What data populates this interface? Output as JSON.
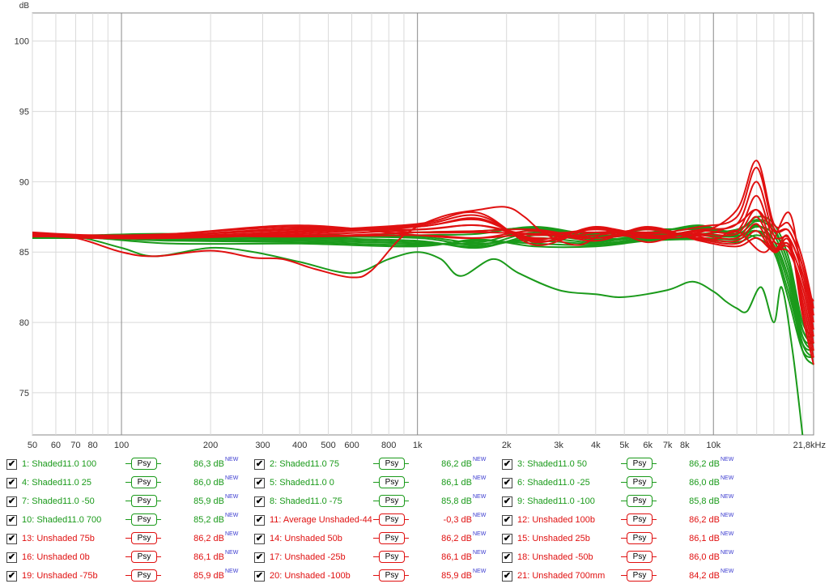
{
  "chart_data": {
    "type": "line",
    "title": "",
    "xlabel": "",
    "ylabel": "dB",
    "xscale": "log",
    "xlim": [
      50,
      21800
    ],
    "ylim": [
      72,
      102
    ],
    "grid": true,
    "x_ticks": [
      {
        "v": 50,
        "t": "50"
      },
      {
        "v": 60,
        "t": "60"
      },
      {
        "v": 70,
        "t": "70"
      },
      {
        "v": 80,
        "t": "80"
      },
      {
        "v": 100,
        "t": "100"
      },
      {
        "v": 200,
        "t": "200"
      },
      {
        "v": 300,
        "t": "300"
      },
      {
        "v": 400,
        "t": "400"
      },
      {
        "v": 500,
        "t": "500"
      },
      {
        "v": 600,
        "t": "600"
      },
      {
        "v": 800,
        "t": "800"
      },
      {
        "v": 1000,
        "t": "1k"
      },
      {
        "v": 2000,
        "t": "2k"
      },
      {
        "v": 3000,
        "t": "3k"
      },
      {
        "v": 4000,
        "t": "4k"
      },
      {
        "v": 5000,
        "t": "5k"
      },
      {
        "v": 6000,
        "t": "6k"
      },
      {
        "v": 7000,
        "t": "7k"
      },
      {
        "v": 8000,
        "t": "8k"
      },
      {
        "v": 10000,
        "t": "10k"
      },
      {
        "v": 21800,
        "t": "21,8kHz"
      }
    ],
    "minor_grid_x": [
      90,
      700,
      900,
      9000,
      12000,
      14000,
      16000,
      18000,
      20000
    ],
    "major_grid_x": [
      100,
      1000,
      10000
    ],
    "y_ticks": [
      75,
      80,
      85,
      90,
      95,
      100
    ],
    "colors": {
      "green": "#1a9a1a",
      "red": "#e01010"
    },
    "series": [
      {
        "name": "1: Shaded11.0 100",
        "color": "green",
        "x": [
          50,
          80,
          150,
          400,
          1000,
          1600,
          2500,
          4000,
          6000,
          9000,
          12000,
          14000,
          16000,
          18000,
          20000,
          21800
        ],
        "y": [
          86.1,
          86.2,
          86.3,
          86.0,
          86.4,
          86.5,
          86.7,
          86.3,
          86.6,
          86.6,
          86.4,
          86.0,
          85.0,
          81.5,
          78.0,
          77.5
        ]
      },
      {
        "name": "2: Shaded11.0 75",
        "color": "green",
        "x": [
          50,
          80,
          150,
          400,
          1000,
          1600,
          2500,
          4000,
          6000,
          9000,
          12000,
          14000,
          16000,
          18000,
          20000,
          21800
        ],
        "y": [
          86.0,
          86.1,
          86.2,
          86.0,
          86.2,
          86.3,
          86.8,
          86.2,
          86.4,
          86.8,
          86.2,
          86.5,
          85.3,
          82.0,
          78.5,
          78.0
        ]
      },
      {
        "name": "3: Shaded11.0 50",
        "color": "green",
        "x": [
          50,
          80,
          150,
          400,
          1000,
          1600,
          2500,
          4000,
          6000,
          9000,
          12000,
          14000,
          16000,
          18000,
          20000,
          21800
        ],
        "y": [
          86.1,
          86.1,
          86.1,
          86.2,
          86.1,
          85.7,
          86.6,
          86.1,
          86.3,
          86.9,
          86.1,
          86.9,
          85.8,
          83.0,
          79.0,
          78.5
        ]
      },
      {
        "name": "4: Shaded11.0 25",
        "color": "green",
        "x": [
          50,
          80,
          150,
          400,
          1000,
          1600,
          2500,
          4000,
          6000,
          9000,
          12000,
          14000,
          16000,
          18000,
          20000,
          21800
        ],
        "y": [
          86.0,
          86.1,
          86.2,
          86.1,
          86.0,
          85.5,
          86.4,
          85.9,
          86.2,
          86.7,
          86.3,
          87.2,
          86.5,
          84.0,
          79.5,
          79.0
        ]
      },
      {
        "name": "5: Shaded11.0 0",
        "color": "green",
        "x": [
          50,
          80,
          150,
          400,
          1000,
          1600,
          2500,
          4000,
          6000,
          9000,
          12000,
          14000,
          16000,
          18000,
          20000,
          21800
        ],
        "y": [
          86.0,
          86.0,
          86.1,
          86.0,
          85.8,
          85.3,
          86.2,
          85.8,
          86.1,
          86.5,
          86.5,
          87.5,
          87.0,
          84.5,
          80.0,
          79.0
        ]
      },
      {
        "name": "6: Shaded11.0 -25",
        "color": "green",
        "x": [
          50,
          80,
          150,
          400,
          1000,
          1600,
          2500,
          4000,
          6000,
          9000,
          12000,
          14000,
          16000,
          18000,
          20000,
          21800
        ],
        "y": [
          86.0,
          86.1,
          86.0,
          85.9,
          85.7,
          85.4,
          86.0,
          85.7,
          86.2,
          86.3,
          86.6,
          87.3,
          86.7,
          84.0,
          79.5,
          78.5
        ]
      },
      {
        "name": "7: Shaded11.0 -50",
        "color": "green",
        "x": [
          50,
          80,
          150,
          400,
          1000,
          1600,
          2500,
          4000,
          6000,
          9000,
          12000,
          14000,
          16000,
          18000,
          20000,
          21800
        ],
        "y": [
          86.0,
          86.1,
          85.9,
          85.8,
          85.6,
          85.6,
          85.8,
          85.6,
          86.0,
          86.2,
          86.1,
          86.8,
          86.2,
          83.5,
          79.0,
          78.0
        ]
      },
      {
        "name": "8: Shaded11.0 -75",
        "color": "green",
        "x": [
          50,
          80,
          150,
          400,
          1000,
          1600,
          2500,
          4000,
          6000,
          9000,
          12000,
          14000,
          16000,
          18000,
          20000,
          21800
        ],
        "y": [
          86.0,
          86.0,
          85.8,
          85.7,
          85.5,
          85.8,
          85.6,
          85.5,
          85.9,
          86.0,
          85.9,
          86.5,
          85.8,
          83.0,
          78.5,
          77.5
        ]
      },
      {
        "name": "9: Shaded11.0 -100",
        "color": "green",
        "x": [
          50,
          80,
          150,
          400,
          1000,
          1600,
          2500,
          4000,
          6000,
          9000,
          12000,
          14000,
          16000,
          18000,
          20000,
          21800
        ],
        "y": [
          86.0,
          86.0,
          85.6,
          85.6,
          85.4,
          85.9,
          85.4,
          85.4,
          85.8,
          85.9,
          85.7,
          86.2,
          85.5,
          82.5,
          78.0,
          77.0
        ]
      },
      {
        "name": "10: Shaded11.0 700",
        "color": "green",
        "x": [
          50,
          70,
          100,
          130,
          200,
          280,
          400,
          600,
          800,
          1000,
          1200,
          1400,
          1800,
          2200,
          3000,
          4000,
          5000,
          7000,
          8500,
          10000,
          11000,
          12000,
          13000,
          14500,
          16000,
          17000,
          18500,
          20000
        ],
        "y": [
          86.0,
          86.1,
          85.3,
          84.7,
          85.3,
          85.0,
          84.3,
          83.5,
          84.5,
          85.0,
          84.5,
          83.3,
          84.5,
          83.5,
          82.3,
          82.0,
          81.8,
          82.3,
          82.9,
          82.2,
          81.5,
          81.0,
          80.8,
          82.5,
          80.0,
          82.5,
          78.0,
          72.0
        ]
      },
      {
        "name": "11: Average Unshaded-44",
        "color": "red",
        "x": [
          50,
          80,
          150,
          400,
          1000,
          1600,
          2500,
          4000,
          6000,
          9000,
          12000,
          14000,
          16000,
          18000,
          20000,
          21800
        ],
        "y": [
          86.3,
          86.1,
          86.2,
          86.1,
          86.2,
          86.0,
          86.3,
          86.4,
          86.0,
          86.2,
          87.0,
          88.0,
          86.5,
          86.5,
          84.0,
          80.5
        ]
      },
      {
        "name": "12: Unshaded 100b",
        "color": "red",
        "x": [
          50,
          80,
          150,
          400,
          1000,
          1600,
          2500,
          4000,
          6000,
          9000,
          12000,
          14000,
          16000,
          18000,
          20000,
          21800
        ],
        "y": [
          86.3,
          86.1,
          86.2,
          86.1,
          86.4,
          86.5,
          86.6,
          86.0,
          86.4,
          86.4,
          88.0,
          91.5,
          87.0,
          87.0,
          84.5,
          81.0
        ]
      },
      {
        "name": "13: Unshaded 75b",
        "color": "red",
        "x": [
          50,
          80,
          150,
          400,
          1000,
          1600,
          2500,
          4000,
          6000,
          9000,
          12000,
          14000,
          16000,
          18000,
          20000,
          21800
        ],
        "y": [
          86.3,
          86.1,
          86.1,
          86.2,
          86.6,
          86.9,
          86.2,
          86.6,
          86.3,
          86.8,
          87.5,
          91.0,
          86.7,
          86.5,
          84.0,
          80.5
        ]
      },
      {
        "name": "14: Unshaded 50b",
        "color": "red",
        "x": [
          50,
          80,
          150,
          400,
          1000,
          1600,
          2500,
          4000,
          6000,
          9000,
          12000,
          14000,
          16000,
          18000,
          20000,
          21800
        ],
        "y": [
          86.2,
          86.1,
          86.0,
          86.3,
          86.8,
          87.3,
          85.9,
          86.7,
          86.1,
          86.6,
          87.0,
          90.0,
          86.2,
          86.0,
          83.5,
          80.0
        ]
      },
      {
        "name": "15: Unshaded 25b",
        "color": "red",
        "x": [
          50,
          80,
          150,
          400,
          1000,
          1600,
          2500,
          4000,
          6000,
          9000,
          12000,
          14000,
          16000,
          18000,
          20000,
          21800
        ],
        "y": [
          86.2,
          86.0,
          86.0,
          86.4,
          86.9,
          87.6,
          85.7,
          86.8,
          86.0,
          86.5,
          86.5,
          89.0,
          85.8,
          85.5,
          83.0,
          79.5
        ]
      },
      {
        "name": "16: Unshaded 0b",
        "color": "red",
        "x": [
          50,
          80,
          150,
          400,
          1000,
          1600,
          2500,
          4000,
          6000,
          9000,
          12000,
          14000,
          16000,
          18000,
          20000,
          21800
        ],
        "y": [
          86.2,
          86.0,
          86.1,
          86.5,
          87.0,
          87.8,
          85.5,
          86.7,
          86.2,
          86.3,
          86.3,
          88.0,
          85.4,
          85.0,
          82.5,
          79.0
        ]
      },
      {
        "name": "17: Unshaded -25b",
        "color": "red",
        "x": [
          50,
          80,
          150,
          400,
          1000,
          1600,
          2500,
          4000,
          6000,
          9000,
          12000,
          14000,
          16000,
          18000,
          20000,
          21800
        ],
        "y": [
          86.2,
          86.1,
          86.2,
          86.6,
          86.8,
          87.4,
          85.8,
          86.4,
          86.4,
          86.2,
          86.0,
          87.5,
          85.2,
          85.3,
          82.0,
          78.5
        ]
      },
      {
        "name": "18: Unshaded -50b",
        "color": "red",
        "x": [
          50,
          80,
          150,
          400,
          1000,
          1600,
          2500,
          4000,
          6000,
          9000,
          12000,
          14000,
          16000,
          18000,
          20000,
          21800
        ],
        "y": [
          86.3,
          86.1,
          86.2,
          86.7,
          86.6,
          86.9,
          86.0,
          86.2,
          86.6,
          86.0,
          85.8,
          87.0,
          85.0,
          85.5,
          81.5,
          78.0
        ]
      },
      {
        "name": "19: Unshaded -75b",
        "color": "red",
        "x": [
          50,
          80,
          150,
          400,
          1000,
          1600,
          2500,
          4000,
          6000,
          9000,
          12000,
          14000,
          16000,
          18000,
          20000,
          21800
        ],
        "y": [
          86.3,
          86.1,
          86.3,
          86.8,
          86.4,
          86.4,
          86.3,
          86.0,
          86.7,
          85.9,
          85.6,
          86.5,
          85.0,
          85.8,
          81.0,
          77.5
        ]
      },
      {
        "name": "20: Unshaded -100b",
        "color": "red",
        "x": [
          50,
          80,
          150,
          400,
          1000,
          1600,
          2500,
          4000,
          6000,
          9000,
          12000,
          14000,
          16000,
          18000,
          20000,
          21800
        ],
        "y": [
          86.4,
          86.2,
          86.3,
          86.9,
          86.2,
          86.0,
          86.5,
          85.8,
          86.8,
          85.8,
          85.4,
          86.0,
          85.1,
          86.0,
          80.5,
          77.0
        ]
      },
      {
        "name": "21: Unshaded 700mm",
        "color": "red",
        "x": [
          50,
          70,
          100,
          130,
          200,
          280,
          350,
          450,
          600,
          700,
          900,
          1200,
          1600,
          2000,
          2300,
          2700,
          3500,
          4500,
          6000,
          8000,
          10000,
          12000,
          15000,
          18000,
          20000,
          21800
        ],
        "y": [
          86.1,
          86.0,
          85.0,
          84.7,
          85.1,
          84.6,
          84.5,
          83.8,
          83.2,
          83.7,
          86.2,
          87.5,
          88.0,
          88.2,
          87.5,
          86.3,
          85.5,
          86.5,
          85.7,
          86.3,
          85.9,
          86.5,
          85.0,
          87.8,
          83.0,
          81.5
        ]
      }
    ]
  },
  "legend": {
    "items": [
      {
        "label": "1: Shaded11.0 100",
        "value": "86,3 dB",
        "new": "NEW",
        "psy": "Psy",
        "color": "green"
      },
      {
        "label": "2: Shaded11.0 75",
        "value": "86,2 dB",
        "new": "NEW",
        "psy": "Psy",
        "color": "green"
      },
      {
        "label": "3: Shaded11.0 50",
        "value": "86,2 dB",
        "new": "NEW",
        "psy": "Psy",
        "color": "green"
      },
      {
        "label": "4: Shaded11.0 25",
        "value": "86,0 dB",
        "new": "NEW",
        "psy": "Psy",
        "color": "green"
      },
      {
        "label": "5: Shaded11.0 0",
        "value": "86,1 dB",
        "new": "NEW",
        "psy": "Psy",
        "color": "green"
      },
      {
        "label": "6: Shaded11.0 -25",
        "value": "86,0 dB",
        "new": "NEW",
        "psy": "Psy",
        "color": "green"
      },
      {
        "label": "7: Shaded11.0 -50",
        "value": "85,9 dB",
        "new": "NEW",
        "psy": "Psy",
        "color": "green"
      },
      {
        "label": "8: Shaded11.0 -75",
        "value": "85,8 dB",
        "new": "NEW",
        "psy": "Psy",
        "color": "green"
      },
      {
        "label": "9: Shaded11.0 -100",
        "value": "85,8 dB",
        "new": "NEW",
        "psy": "Psy",
        "color": "green"
      },
      {
        "label": "10: Shaded11.0 700",
        "value": "85,2 dB",
        "new": "NEW",
        "psy": "Psy",
        "color": "green"
      },
      {
        "label": "11: Average Unshaded-44",
        "value": "-0,3 dB",
        "new": "NEW",
        "psy": "Psy",
        "color": "red"
      },
      {
        "label": "12: Unshaded 100b",
        "value": "86,2 dB",
        "new": "NEW",
        "psy": "Psy",
        "color": "red"
      },
      {
        "label": "13: Unshaded 75b",
        "value": "86,2 dB",
        "new": "NEW",
        "psy": "Psy",
        "color": "red"
      },
      {
        "label": "14: Unshaded 50b",
        "value": "86,2 dB",
        "new": "NEW",
        "psy": "Psy",
        "color": "red"
      },
      {
        "label": "15: Unshaded 25b",
        "value": "86,1 dB",
        "new": "NEW",
        "psy": "Psy",
        "color": "red"
      },
      {
        "label": "16: Unshaded 0b",
        "value": "86,1 dB",
        "new": "NEW",
        "psy": "Psy",
        "color": "red"
      },
      {
        "label": "17: Unshaded -25b",
        "value": "86,1 dB",
        "new": "NEW",
        "psy": "Psy",
        "color": "red"
      },
      {
        "label": "18: Unshaded -50b",
        "value": "86,0 dB",
        "new": "NEW",
        "psy": "Psy",
        "color": "red"
      },
      {
        "label": "19: Unshaded -75b",
        "value": "85,9 dB",
        "new": "NEW",
        "psy": "Psy",
        "color": "red"
      },
      {
        "label": "20: Unshaded -100b",
        "value": "85,9 dB",
        "new": "NEW",
        "psy": "Psy",
        "color": "red"
      },
      {
        "label": "21: Unshaded 700mm",
        "value": "84,2 dB",
        "new": "NEW",
        "psy": "Psy",
        "color": "red"
      }
    ]
  }
}
